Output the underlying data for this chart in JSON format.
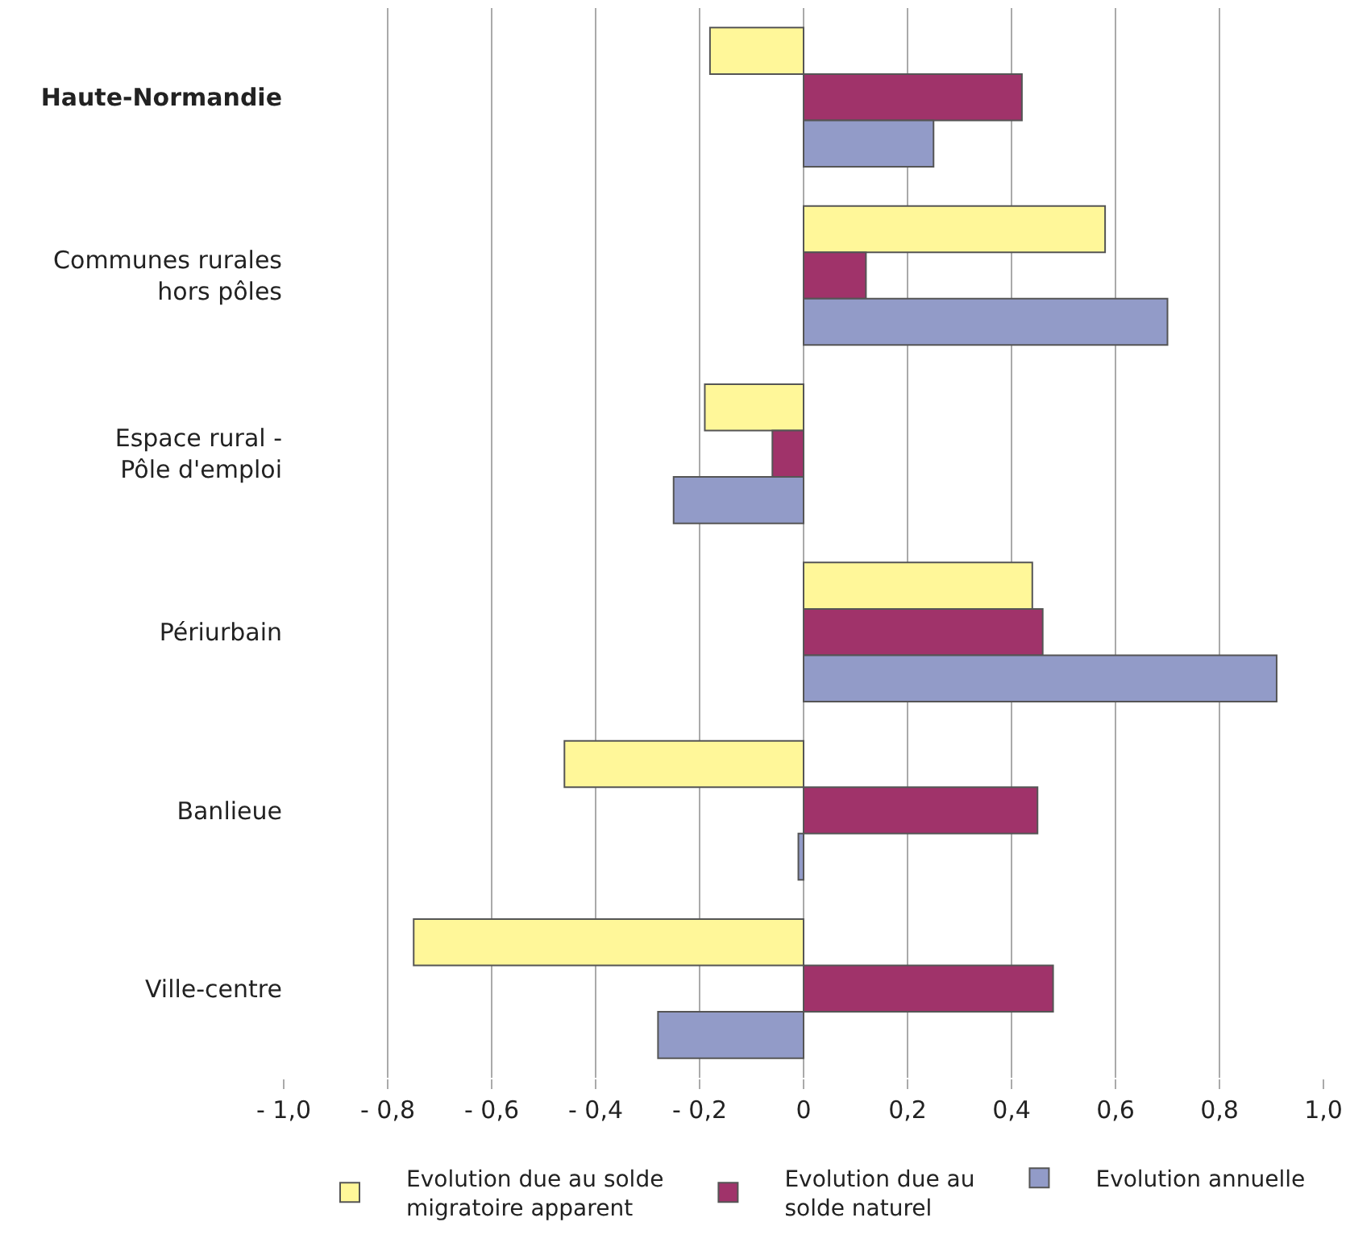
{
  "chart_data": {
    "type": "bar",
    "orientation": "horizontal",
    "categories": [
      "Haute-Normandie",
      "Communes rurales\nhors pôles",
      "Espace rural -\nPôle d'emploi",
      "Périurbain",
      "Banlieue",
      "Ville-centre"
    ],
    "series": [
      {
        "name": "Evolution due au solde\nmigratoire apparent",
        "color": "#fff799",
        "values": [
          -0.18,
          0.58,
          -0.19,
          0.44,
          -0.46,
          -0.75
        ]
      },
      {
        "name": "Evolution due au\nsolde naturel",
        "color": "#a0336a",
        "values": [
          0.42,
          0.12,
          -0.06,
          0.46,
          0.45,
          0.48
        ]
      },
      {
        "name": "Evolution annuelle",
        "color": "#929bc8",
        "values": [
          0.25,
          0.7,
          -0.25,
          0.91,
          -0.01,
          -0.28
        ]
      }
    ],
    "xlim": [
      -1.0,
      1.0
    ],
    "xticks": [
      {
        "value": -1.0,
        "label": "- 1,0"
      },
      {
        "value": -0.8,
        "label": "- 0,8"
      },
      {
        "value": -0.6,
        "label": "- 0,6"
      },
      {
        "value": -0.4,
        "label": "- 0,4"
      },
      {
        "value": -0.2,
        "label": "- 0,2"
      },
      0,
      {
        "value": 0.2,
        "label": "0,2"
      },
      {
        "value": 0.4,
        "label": "0,4"
      },
      {
        "value": 0.6,
        "label": "0,6"
      },
      {
        "value": 0.8,
        "label": "0,8"
      },
      {
        "value": 1.0,
        "label": "1,0"
      }
    ],
    "grid": "x",
    "legend": "bottom"
  }
}
